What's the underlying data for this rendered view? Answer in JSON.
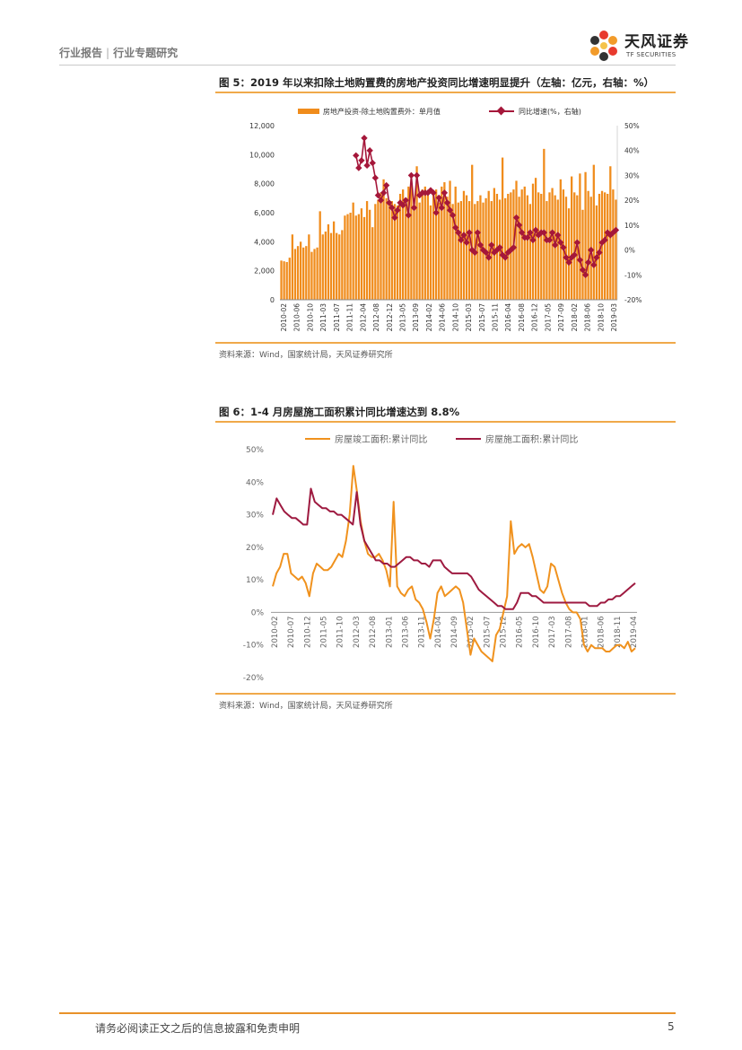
{
  "header": {
    "category": "行业报告",
    "separator": "|",
    "subcategory": "行业专题研究",
    "logo_cn": "天风证券",
    "logo_en": "TF SECURITIES",
    "logo_icon": "flower-logo-icon"
  },
  "figure5": {
    "title": "图 5：2019 年以来扣除土地购置费的房地产投资同比增速明显提升（左轴：亿元，右轴：%）",
    "source": "资料来源：Wind，国家统计局，天风证券研究所"
  },
  "figure6": {
    "title": "图 6：1-4 月房屋施工面积累计同比增速达到 8.8%",
    "source": "资料来源：Wind，国家统计局，天风证券研究所"
  },
  "chart_data": [
    {
      "type": "bar",
      "title": "",
      "legend_position": "top",
      "grid": false,
      "x_tick_labels": [
        "2010-02",
        "2010-06",
        "2010-10",
        "2011-03",
        "2011-07",
        "2011-11",
        "2012-04",
        "2012-08",
        "2012-12",
        "2013-05",
        "2013-09",
        "2014-02",
        "2014-06",
        "2014-10",
        "2015-03",
        "2015-07",
        "2015-11",
        "2016-04",
        "2016-08",
        "2016-12",
        "2017-05",
        "2017-09",
        "2018-02",
        "2018-06",
        "2018-10",
        "2019-03"
      ],
      "yaxis_left": {
        "min": 0,
        "max": 12000,
        "ticks": [
          "0",
          "2,000",
          "4,000",
          "6,000",
          "8,000",
          "10,000",
          "12,000"
        ]
      },
      "yaxis_right": {
        "min": -20,
        "max": 50,
        "ticks": [
          "-20%",
          "-10%",
          "0%",
          "10%",
          "20%",
          "30%",
          "40%",
          "50%"
        ]
      },
      "series": [
        {
          "name": "房地产投资-除土地购置费外：单月值",
          "kind": "bar",
          "axis": "left",
          "color": "#f08c1c",
          "values": [
            2700,
            2650,
            2600,
            2900,
            4500,
            3500,
            3700,
            4000,
            3600,
            3700,
            4500,
            3300,
            3500,
            3600,
            6100,
            4500,
            4700,
            5200,
            4600,
            5400,
            4600,
            4500,
            4800,
            5800,
            5900,
            6000,
            6700,
            5800,
            5900,
            6300,
            5700,
            6800,
            6200,
            5000,
            6600,
            6900,
            7400,
            8300,
            7000,
            6600,
            6800,
            6600,
            6500,
            7300,
            7600,
            6800,
            7800,
            7900,
            7000,
            9200,
            6700,
            7600,
            7800,
            7200,
            6500,
            7400,
            7600,
            6700,
            7800,
            8100,
            7100,
            8200,
            6600,
            7800,
            6700,
            6800,
            7500,
            7200,
            6800,
            9300,
            6600,
            6800,
            7200,
            6700,
            7000,
            7500,
            6800,
            7700,
            7300,
            6900,
            9800,
            7000,
            7300,
            7400,
            7600,
            8200,
            7100,
            7600,
            7800,
            7200,
            6600,
            8000,
            8400,
            7400,
            7300,
            10400,
            6800,
            7400,
            7700,
            7200,
            6900,
            8300,
            7600,
            7100,
            6300,
            8500,
            7400,
            7200,
            8700,
            6200,
            8800,
            7500,
            7100,
            9300,
            6500,
            7300,
            7500,
            7400,
            7300,
            9200,
            7600,
            6900
          ]
        },
        {
          "name": "同比增速(%，右轴)",
          "kind": "line",
          "axis": "right",
          "color": "#a5173a",
          "values": [
            38,
            33,
            36,
            45,
            34,
            40,
            35,
            29,
            22,
            20,
            23,
            26,
            19,
            17,
            13,
            16,
            19,
            18,
            20,
            14,
            30,
            17,
            30,
            22,
            23,
            23,
            23,
            24,
            23,
            15,
            21,
            17,
            23,
            19,
            16,
            14,
            9,
            7,
            4,
            6,
            3,
            7,
            0,
            -1,
            7,
            2,
            0,
            -1,
            -3,
            2,
            -1,
            0,
            1,
            -2,
            -3,
            -1,
            0,
            1,
            13,
            10,
            7,
            5,
            5,
            7,
            4,
            8,
            6,
            7,
            7,
            4,
            4,
            7,
            2,
            6,
            3,
            1,
            -3,
            -5,
            -3,
            -2,
            3,
            -4,
            -8,
            -10,
            -5,
            0,
            -6,
            -3,
            -1,
            3,
            4,
            7,
            6,
            7,
            8
          ]
        }
      ]
    },
    {
      "type": "line",
      "title": "",
      "legend_position": "top",
      "grid": false,
      "x_tick_labels": [
        "2010-02",
        "2010-07",
        "2010-12",
        "2011-05",
        "2011-10",
        "2012-03",
        "2012-08",
        "2013-01",
        "2013-06",
        "2013-11",
        "2014-04",
        "2014-09",
        "2015-02",
        "2015-07",
        "2015-12",
        "2016-05",
        "2016-10",
        "2017-03",
        "2017-08",
        "2018-01",
        "2018-06",
        "2018-11",
        "2019-04"
      ],
      "yaxis": {
        "min": -20,
        "max": 50,
        "ticks": [
          "-20%",
          "-10%",
          "0%",
          "10%",
          "20%",
          "30%",
          "40%",
          "50%"
        ]
      },
      "series": [
        {
          "name": "房屋竣工面积:累计同比",
          "color": "#f0921e",
          "values": [
            8,
            12,
            14,
            18,
            18,
            12,
            11,
            10,
            11,
            9,
            5,
            12,
            15,
            14,
            13,
            13,
            14,
            16,
            18,
            17,
            22,
            30,
            45,
            37,
            28,
            22,
            18,
            17,
            17,
            18,
            16,
            13,
            8,
            34,
            8,
            6,
            5,
            7,
            8,
            4,
            3,
            1,
            -3,
            -8,
            -2,
            6,
            8,
            5,
            6,
            7,
            8,
            7,
            3,
            -5,
            -13,
            -8,
            -10,
            -12,
            -13,
            -14,
            -15,
            -7,
            -5,
            0,
            5,
            28,
            18,
            20,
            21,
            20,
            21,
            17,
            12,
            7,
            6,
            8,
            15,
            14,
            10,
            6,
            3,
            1,
            0,
            0,
            -2,
            -10,
            -12,
            -10,
            -11,
            -11,
            -11,
            -12,
            -12,
            -11,
            -10,
            -10,
            -11,
            -9,
            -12,
            -11
          ]
        },
        {
          "name": "房屋施工面积:累计同比",
          "color": "#9e1a40",
          "values": [
            30,
            35,
            33,
            31,
            30,
            29,
            29,
            28,
            27,
            27,
            38,
            34,
            33,
            32,
            32,
            31,
            31,
            30,
            30,
            29,
            28,
            27,
            37,
            27,
            22,
            20,
            18,
            16,
            16,
            15,
            15,
            14,
            14,
            15,
            16,
            17,
            17,
            16,
            16,
            15,
            15,
            14,
            16,
            16,
            16,
            14,
            13,
            12,
            12,
            12,
            12,
            12,
            11,
            9,
            7,
            6,
            5,
            4,
            3,
            2,
            2,
            1,
            1,
            1,
            3,
            6,
            6,
            6,
            5,
            5,
            4,
            3,
            3,
            3,
            3,
            3,
            3,
            3,
            3,
            3,
            3,
            3,
            3,
            2,
            2,
            2,
            3,
            3,
            4,
            4,
            5,
            5,
            6,
            7,
            8,
            9
          ]
        }
      ]
    }
  ],
  "footer": {
    "disclaimer": "请务必阅读正文之后的信息披露和免责申明",
    "page_number": "5"
  }
}
